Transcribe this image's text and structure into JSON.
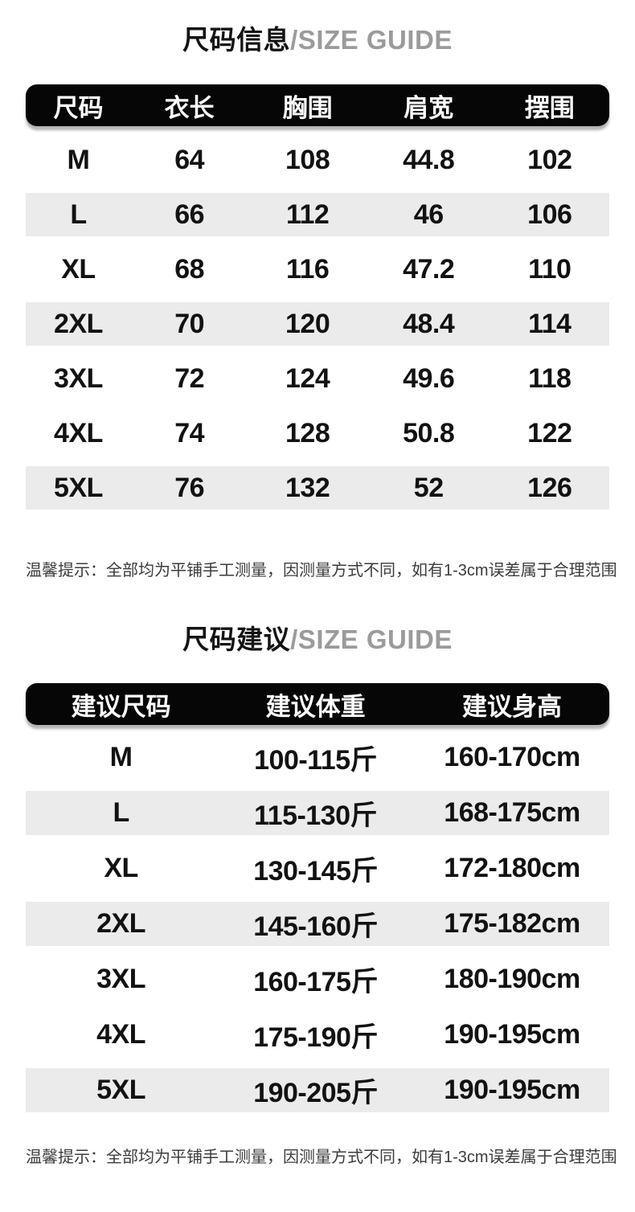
{
  "colors": {
    "header_bar_bg": "#060606",
    "header_bar_text": "#ffffff",
    "stripe_gray": "#ebebeb",
    "title_black": "#141414",
    "title_gray": "#9b9b9b",
    "note_text": "#3c3c3c",
    "page_bg": "#ffffff"
  },
  "chart_data": [
    {
      "type": "table",
      "title": "尺码信息/SIZE GUIDE",
      "title_cn": "尺码信息",
      "title_en": "/SIZE GUIDE",
      "columns": [
        "尺码",
        "衣长",
        "胸围",
        "肩宽",
        "摆围"
      ],
      "rows": [
        [
          "M",
          64,
          108,
          44.8,
          102
        ],
        [
          "L",
          66,
          112,
          46,
          106
        ],
        [
          "XL",
          68,
          116,
          47.2,
          110
        ],
        [
          "2XL",
          70,
          120,
          48.4,
          114
        ],
        [
          "3XL",
          72,
          124,
          49.6,
          118
        ],
        [
          "4XL",
          74,
          128,
          50.8,
          122
        ],
        [
          "5XL",
          76,
          132,
          52,
          126
        ]
      ],
      "striped_row_indexes": [
        1,
        3,
        6
      ],
      "note": "温馨提示：全部均为平铺手工测量，因测量方式不同，如有1-3cm误差属于合理范围"
    },
    {
      "type": "table",
      "title": "尺码建议/SIZE GUIDE",
      "title_cn": "尺码建议",
      "title_en": "/SIZE GUIDE",
      "columns": [
        "建议尺码",
        "建议体重",
        "建议身高"
      ],
      "rows": [
        [
          "M",
          "100-115斤",
          "160-170cm"
        ],
        [
          "L",
          "115-130斤",
          "168-175cm"
        ],
        [
          "XL",
          "130-145斤",
          "172-180cm"
        ],
        [
          "2XL",
          "145-160斤",
          "175-182cm"
        ],
        [
          "3XL",
          "160-175斤",
          "180-190cm"
        ],
        [
          "4XL",
          "175-190斤",
          "190-195cm"
        ],
        [
          "5XL",
          "190-205斤",
          "190-195cm"
        ]
      ],
      "striped_row_indexes": [
        1,
        3,
        6
      ],
      "note": "温馨提示：全部均为平铺手工测量，因测量方式不同，如有1-3cm误差属于合理范围"
    }
  ]
}
